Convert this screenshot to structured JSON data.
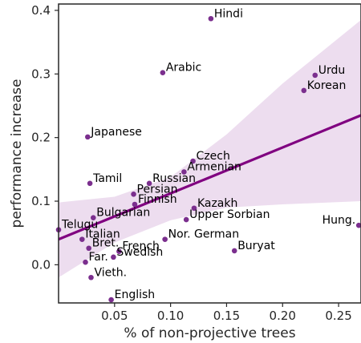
{
  "chart_data": {
    "type": "scatter",
    "xlabel": "% of non-projective trees",
    "ylabel": "performance increase",
    "xlim": [
      0.0,
      0.27
    ],
    "ylim": [
      -0.06,
      0.41
    ],
    "x_ticks": [
      0.05,
      0.1,
      0.15,
      0.2,
      0.25
    ],
    "x_tick_labels": [
      "0.05",
      "0.10",
      "0.15",
      "0.20",
      "0.25"
    ],
    "y_ticks": [
      0.0,
      0.1,
      0.2,
      0.3,
      0.4
    ],
    "y_tick_labels": [
      "0.0",
      "0.1",
      "0.2",
      "0.3",
      "0.4"
    ],
    "grid": false,
    "point_color": "#7b2f8e",
    "line_color": "#800080",
    "band_color": "#ead7ec",
    "regression": {
      "x": [
        0.0,
        0.27
      ],
      "y": [
        0.04,
        0.235
      ]
    },
    "band": {
      "x": [
        0.0,
        0.05,
        0.1,
        0.15,
        0.2,
        0.27
      ],
      "lower": [
        -0.02,
        0.035,
        0.07,
        0.09,
        0.095,
        0.1
      ],
      "upper": [
        0.098,
        0.107,
        0.138,
        0.205,
        0.285,
        0.385
      ]
    },
    "points": [
      {
        "label": "Hindi",
        "x": 0.136,
        "y": 0.387
      },
      {
        "label": "Arabic",
        "x": 0.093,
        "y": 0.302
      },
      {
        "label": "Urdu",
        "x": 0.229,
        "y": 0.298
      },
      {
        "label": "Korean",
        "x": 0.219,
        "y": 0.274
      },
      {
        "label": "Japanese",
        "x": 0.026,
        "y": 0.201
      },
      {
        "label": "Czech",
        "x": 0.12,
        "y": 0.163
      },
      {
        "label": "Armenian",
        "x": 0.112,
        "y": 0.146
      },
      {
        "label": "Russian",
        "x": 0.081,
        "y": 0.128
      },
      {
        "label": "Tamil",
        "x": 0.028,
        "y": 0.128
      },
      {
        "label": "Persian",
        "x": 0.067,
        "y": 0.111
      },
      {
        "label": "Finnish",
        "x": 0.068,
        "y": 0.095
      },
      {
        "label": "Kazakh",
        "x": 0.121,
        "y": 0.089
      },
      {
        "label": "Bulgarian",
        "x": 0.031,
        "y": 0.074
      },
      {
        "label": "Upper Sorbian",
        "x": 0.114,
        "y": 0.071
      },
      {
        "label": "Telugu",
        "x": 0.0,
        "y": 0.055
      },
      {
        "label": "Hung.",
        "x": 0.268,
        "y": 0.062
      },
      {
        "label": "Italian",
        "x": 0.021,
        "y": 0.04
      },
      {
        "label": "Nor. German",
        "x": 0.095,
        "y": 0.04
      },
      {
        "label": "Bret.",
        "x": 0.027,
        "y": 0.026
      },
      {
        "label": "French",
        "x": 0.054,
        "y": 0.021
      },
      {
        "label": "Buryat",
        "x": 0.157,
        "y": 0.022
      },
      {
        "label": "Far.",
        "x": 0.024,
        "y": 0.004
      },
      {
        "label": "Swedish",
        "x": 0.049,
        "y": 0.012
      },
      {
        "label": "Vieth.",
        "x": 0.029,
        "y": -0.02
      },
      {
        "label": "English",
        "x": 0.047,
        "y": -0.055
      }
    ]
  }
}
